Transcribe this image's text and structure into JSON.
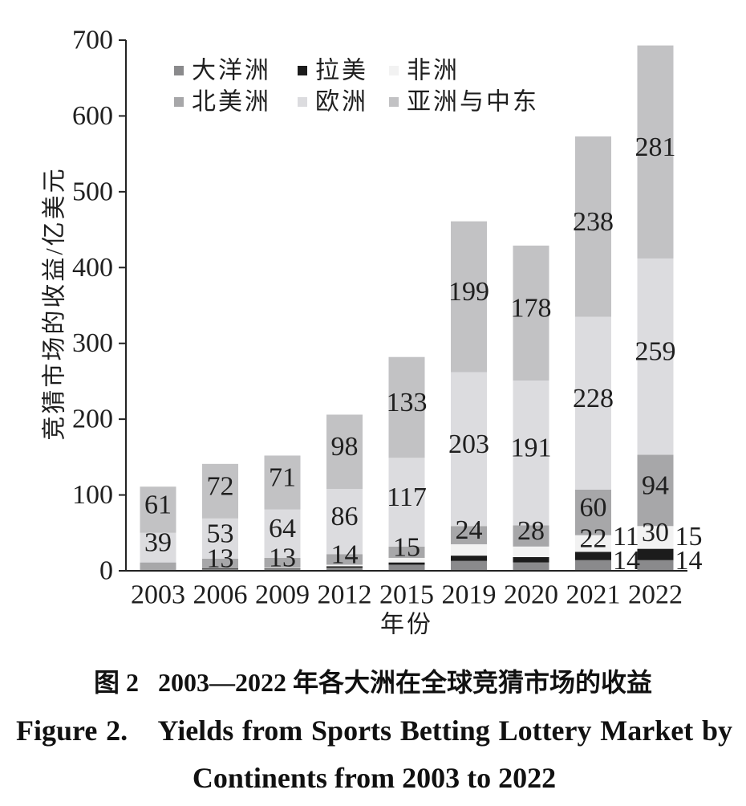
{
  "chart_data": {
    "type": "bar",
    "stacked": true,
    "categories": [
      "2003",
      "2006",
      "2009",
      "2012",
      "2015",
      "2019",
      "2020",
      "2021",
      "2022"
    ],
    "xlabel": "年份",
    "ylabel": "竞猜市场的收益/亿美元",
    "ylim": [
      0,
      700
    ],
    "yticks": [
      0,
      100,
      200,
      300,
      400,
      500,
      600,
      700
    ],
    "grid": false,
    "legend": "top-left",
    "series": [
      {
        "name": "大洋洲",
        "color": "#8a8a8c",
        "values": [
          1,
          2,
          2,
          4,
          8,
          13,
          11,
          14,
          14
        ],
        "labeled": [
          false,
          false,
          false,
          false,
          false,
          false,
          false,
          true,
          true
        ]
      },
      {
        "name": "拉美",
        "color": "#1c1c1c",
        "values": [
          0,
          1,
          1,
          2,
          3,
          7,
          7,
          11,
          15
        ],
        "labeled": [
          false,
          false,
          false,
          false,
          false,
          false,
          false,
          true,
          true
        ]
      },
      {
        "name": "非洲",
        "color": "#f2f2f2",
        "values": [
          0,
          0,
          1,
          2,
          6,
          15,
          14,
          22,
          30
        ],
        "labeled": [
          false,
          false,
          false,
          false,
          false,
          false,
          false,
          true,
          true
        ]
      },
      {
        "name": "北美洲",
        "color": "#a7a7a9",
        "values": [
          10,
          13,
          13,
          14,
          15,
          24,
          28,
          60,
          94
        ],
        "labeled": [
          false,
          true,
          true,
          true,
          true,
          true,
          true,
          true,
          true
        ]
      },
      {
        "name": "欧洲",
        "color": "#dcdcdf",
        "values": [
          39,
          53,
          64,
          86,
          117,
          203,
          191,
          228,
          259
        ],
        "labeled": [
          true,
          true,
          true,
          true,
          true,
          true,
          true,
          true,
          true
        ]
      },
      {
        "name": "亚洲与中东",
        "color": "#c2c2c4",
        "values": [
          61,
          72,
          71,
          98,
          133,
          199,
          178,
          238,
          281
        ],
        "labeled": [
          true,
          true,
          true,
          true,
          true,
          true,
          true,
          true,
          true
        ]
      }
    ]
  },
  "caption": {
    "zh": "图 2   2003—2022 年各大洲在全球竞猜市场的收益",
    "en_label": "Figure 2.",
    "en_text": "Yields from Sports Betting Lottery Market by Continents from 2003 to 2022"
  }
}
